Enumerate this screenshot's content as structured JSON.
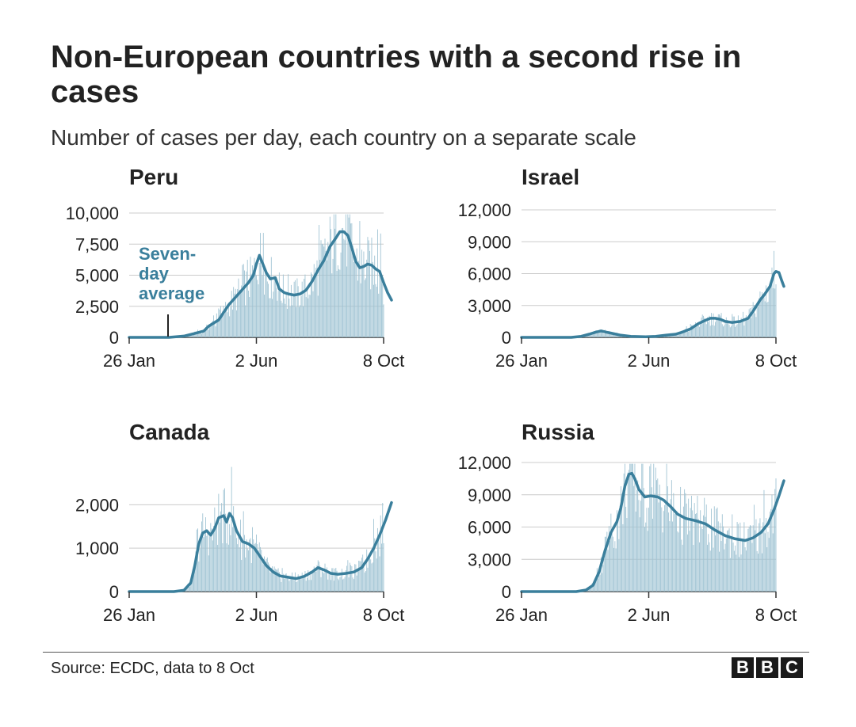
{
  "title": "Non-European countries with a second rise in cases",
  "subtitle": "Number of cases per day, each country on a separate scale",
  "source": "Source: ECDC, data to 8 Oct",
  "logo": [
    "B",
    "B",
    "C"
  ],
  "colors": {
    "line": "#3a7f9c",
    "bars": "#9fc3d3",
    "grid": "#cccccc",
    "text": "#222222"
  },
  "annotation": {
    "lines": [
      "Seven-",
      "day",
      "average"
    ],
    "color": "#3a7f9c"
  },
  "chart_data": [
    {
      "type": "area",
      "title": "Peru",
      "xticks": [
        "26 Jan",
        "2 Jun",
        "8 Oct"
      ],
      "x_domain": [
        "2020-01-26",
        "2020-10-08"
      ],
      "ylim": [
        0,
        10000
      ],
      "yticks": [
        0,
        2500,
        5000,
        7500,
        10000
      ],
      "ytick_labels": [
        "0",
        "2,500",
        "5,000",
        "7,500",
        "10,000"
      ],
      "series": [
        {
          "name": "Seven-day average",
          "points": [
            [
              0,
              0
            ],
            [
              40,
              0
            ],
            [
              55,
              100
            ],
            [
              65,
              300
            ],
            [
              75,
              500
            ],
            [
              80,
              900
            ],
            [
              90,
              1400
            ],
            [
              100,
              2600
            ],
            [
              110,
              3500
            ],
            [
              120,
              4400
            ],
            [
              125,
              5000
            ],
            [
              128,
              5900
            ],
            [
              131,
              6600
            ],
            [
              134,
              6000
            ],
            [
              138,
              5200
            ],
            [
              142,
              4700
            ],
            [
              147,
              4800
            ],
            [
              151,
              3900
            ],
            [
              156,
              3600
            ],
            [
              160,
              3500
            ],
            [
              166,
              3400
            ],
            [
              172,
              3500
            ],
            [
              178,
              3800
            ],
            [
              184,
              4500
            ],
            [
              190,
              5400
            ],
            [
              196,
              6200
            ],
            [
              202,
              7300
            ],
            [
              208,
              8000
            ],
            [
              212,
              8500
            ],
            [
              216,
              8500
            ],
            [
              220,
              8200
            ],
            [
              224,
              7200
            ],
            [
              228,
              6100
            ],
            [
              232,
              5600
            ],
            [
              236,
              5700
            ],
            [
              240,
              5900
            ],
            [
              244,
              5800
            ],
            [
              248,
              5500
            ],
            [
              252,
              5300
            ],
            [
              256,
              4400
            ],
            [
              260,
              3600
            ],
            [
              264,
              3000
            ]
          ]
        }
      ]
    },
    {
      "type": "area",
      "title": "Israel",
      "xticks": [
        "26 Jan",
        "2 Jun",
        "8 Oct"
      ],
      "x_domain": [
        "2020-01-26",
        "2020-10-08"
      ],
      "ylim": [
        0,
        12000
      ],
      "yticks": [
        0,
        3000,
        6000,
        9000,
        12000
      ],
      "ytick_labels": [
        "0",
        "3,000",
        "6,000",
        "9,000",
        "12,000"
      ],
      "series": [
        {
          "name": "Seven-day average",
          "points": [
            [
              0,
              0
            ],
            [
              50,
              0
            ],
            [
              60,
              100
            ],
            [
              68,
              300
            ],
            [
              75,
              500
            ],
            [
              80,
              600
            ],
            [
              85,
              500
            ],
            [
              90,
              400
            ],
            [
              100,
              200
            ],
            [
              110,
              100
            ],
            [
              125,
              50
            ],
            [
              135,
              100
            ],
            [
              145,
              200
            ],
            [
              155,
              300
            ],
            [
              162,
              500
            ],
            [
              170,
              800
            ],
            [
              178,
              1300
            ],
            [
              185,
              1600
            ],
            [
              190,
              1800
            ],
            [
              195,
              1800
            ],
            [
              200,
              1700
            ],
            [
              205,
              1500
            ],
            [
              212,
              1400
            ],
            [
              220,
              1500
            ],
            [
              228,
              1800
            ],
            [
              234,
              2600
            ],
            [
              240,
              3500
            ],
            [
              245,
              4100
            ],
            [
              250,
              4800
            ],
            [
              254,
              6000
            ],
            [
              256,
              6200
            ],
            [
              259,
              6100
            ],
            [
              262,
              5300
            ],
            [
              264,
              4800
            ]
          ]
        }
      ]
    },
    {
      "type": "area",
      "title": "Canada",
      "xticks": [
        "26 Jan",
        "2 Jun",
        "8 Oct"
      ],
      "x_domain": [
        "2020-01-26",
        "2020-10-08"
      ],
      "ylim": [
        0,
        2900
      ],
      "yticks": [
        0,
        1000,
        2000
      ],
      "ytick_labels": [
        "0",
        "1,000",
        "2,000"
      ],
      "series": [
        {
          "name": "Seven-day average",
          "points": [
            [
              0,
              0
            ],
            [
              45,
              0
            ],
            [
              55,
              30
            ],
            [
              62,
              200
            ],
            [
              66,
              600
            ],
            [
              70,
              1100
            ],
            [
              74,
              1350
            ],
            [
              78,
              1400
            ],
            [
              82,
              1300
            ],
            [
              86,
              1450
            ],
            [
              90,
              1700
            ],
            [
              95,
              1750
            ],
            [
              98,
              1600
            ],
            [
              101,
              1800
            ],
            [
              104,
              1700
            ],
            [
              108,
              1400
            ],
            [
              114,
              1150
            ],
            [
              120,
              1100
            ],
            [
              126,
              1000
            ],
            [
              132,
              800
            ],
            [
              138,
              600
            ],
            [
              145,
              450
            ],
            [
              152,
              360
            ],
            [
              160,
              330
            ],
            [
              168,
              300
            ],
            [
              176,
              350
            ],
            [
              184,
              450
            ],
            [
              190,
              550
            ],
            [
              196,
              500
            ],
            [
              203,
              420
            ],
            [
              210,
              400
            ],
            [
              218,
              420
            ],
            [
              226,
              450
            ],
            [
              234,
              550
            ],
            [
              240,
              750
            ],
            [
              246,
              1000
            ],
            [
              252,
              1300
            ],
            [
              258,
              1650
            ],
            [
              264,
              2050
            ]
          ]
        }
      ]
    },
    {
      "type": "area",
      "title": "Russia",
      "xticks": [
        "26 Jan",
        "2 Jun",
        "8 Oct"
      ],
      "x_domain": [
        "2020-01-26",
        "2020-10-08"
      ],
      "ylim": [
        0,
        12000
      ],
      "yticks": [
        0,
        3000,
        6000,
        9000,
        12000
      ],
      "ytick_labels": [
        "0",
        "3,000",
        "6,000",
        "9,000",
        "12,000"
      ],
      "series": [
        {
          "name": "Seven-day average",
          "points": [
            [
              0,
              0
            ],
            [
              55,
              0
            ],
            [
              65,
              150
            ],
            [
              72,
              600
            ],
            [
              78,
              1800
            ],
            [
              84,
              3800
            ],
            [
              90,
              5500
            ],
            [
              96,
              6500
            ],
            [
              100,
              7800
            ],
            [
              104,
              9800
            ],
            [
              108,
              10900
            ],
            [
              111,
              11000
            ],
            [
              114,
              10500
            ],
            [
              118,
              9500
            ],
            [
              124,
              8800
            ],
            [
              130,
              8900
            ],
            [
              137,
              8800
            ],
            [
              143,
              8500
            ],
            [
              150,
              7900
            ],
            [
              157,
              7200
            ],
            [
              165,
              6800
            ],
            [
              175,
              6600
            ],
            [
              185,
              6300
            ],
            [
              195,
              5700
            ],
            [
              205,
              5200
            ],
            [
              215,
              4900
            ],
            [
              225,
              4750
            ],
            [
              233,
              5000
            ],
            [
              241,
              5500
            ],
            [
              248,
              6300
            ],
            [
              254,
              7600
            ],
            [
              259,
              8900
            ],
            [
              264,
              10300
            ]
          ]
        }
      ]
    }
  ]
}
